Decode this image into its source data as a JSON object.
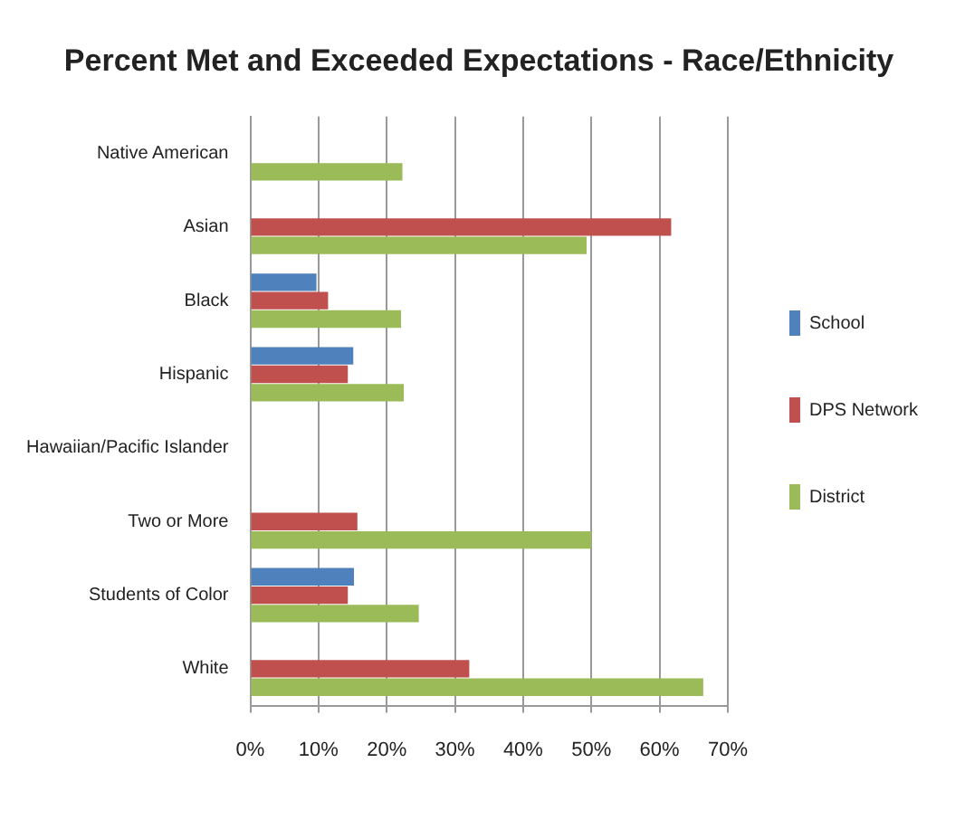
{
  "chart_data": {
    "type": "bar",
    "orientation": "horizontal",
    "title": "Percent Met and Exceeded Expectations - Race/Ethnicity",
    "categories": [
      "Native American",
      "Asian",
      "Black",
      "Hispanic",
      "Hawaiian/Pacific Islander",
      "Two or More",
      "Students of Color",
      "White"
    ],
    "series": [
      {
        "name": "School",
        "color": "#4f81bd",
        "values": [
          null,
          null,
          9.7,
          15.1,
          null,
          null,
          15.2,
          null
        ]
      },
      {
        "name": "DPS Network",
        "color": "#c0504d",
        "values": [
          null,
          61.7,
          11.4,
          14.3,
          null,
          15.7,
          14.3,
          32.1
        ]
      },
      {
        "name": "District",
        "color": "#9bbb59",
        "values": [
          22.3,
          49.3,
          22.1,
          22.5,
          null,
          50.0,
          24.7,
          66.4
        ]
      }
    ],
    "xlim": [
      0,
      70
    ],
    "xticks": [
      {
        "value": 0,
        "label": "0%"
      },
      {
        "value": 10,
        "label": "10%"
      },
      {
        "value": 20,
        "label": "20%"
      },
      {
        "value": 30,
        "label": "30%"
      },
      {
        "value": 40,
        "label": "40%"
      },
      {
        "value": 50,
        "label": "50%"
      },
      {
        "value": 60,
        "label": "60%"
      },
      {
        "value": 70,
        "label": "70%"
      }
    ],
    "grid": "x",
    "legend": "right"
  }
}
